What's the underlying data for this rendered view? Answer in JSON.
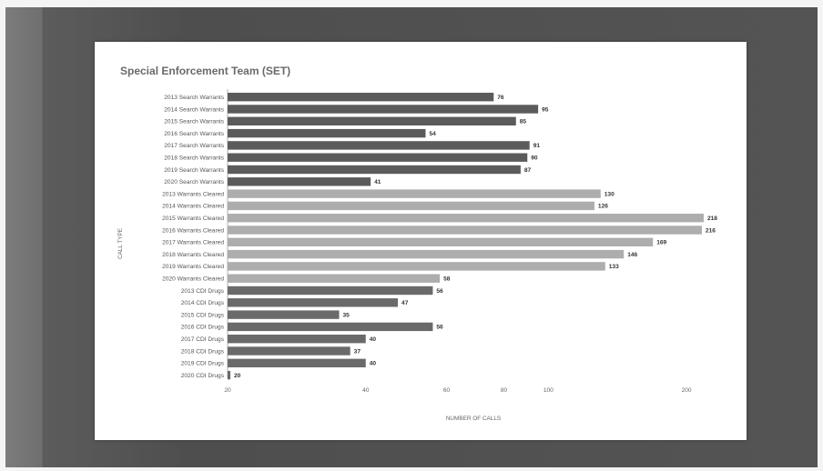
{
  "chart_data": {
    "type": "bar",
    "orientation": "horizontal",
    "title": "Special Enforcement Team (SET)",
    "xlabel": "NUMBER OF CALLS",
    "ylabel": "CALL TYPE",
    "x_scale": "log",
    "xlim": [
      20,
      240
    ],
    "x_ticks": [
      "20",
      "40",
      "60",
      "80",
      "100",
      "200"
    ],
    "x_tick_values": [
      20,
      40,
      60,
      80,
      100,
      200
    ],
    "grid": false,
    "legend": "none",
    "categories": [
      "2013 Search Warrants",
      "2014 Search Warrants",
      "2015 Search Warrants",
      "2016 Search Warrants",
      "2017 Search Warrants",
      "2018 Search Warrants",
      "2019 Search Warrants",
      "2020 Search Warrants",
      "2013 Warrants Cleared",
      "2014 Warrants Cleared",
      "2015 Warrants Cleared",
      "2016 Warrants Cleared",
      "2017 Warrants Cleared",
      "2018 Warrants Cleared",
      "2019 Warrants Cleared",
      "2020 Warrants Cleared",
      "2013 CDI Drugs",
      "2014 CDI Drugs",
      "2015 CDI Drugs",
      "2016 CDI Drugs",
      "2017 CDI Drugs",
      "2018 CDI Drugs",
      "2019 CDI Drugs",
      "2020 CDI Drugs"
    ],
    "values": [
      76,
      95,
      85,
      54,
      91,
      90,
      87,
      41,
      130,
      126,
      218,
      216,
      169,
      146,
      133,
      58,
      56,
      47,
      35,
      56,
      40,
      37,
      40,
      20
    ],
    "value_labels": [
      "76",
      "95",
      "85",
      "54",
      "91",
      "90",
      "87",
      "41",
      "130",
      "126",
      "218",
      "216",
      "169",
      "146",
      "133",
      "58",
      "56",
      "47",
      "35",
      "56",
      "40",
      "37",
      "40",
      "20"
    ],
    "groups": [
      {
        "name": "Search Warrants",
        "color": "#5b5b5b",
        "count": 8
      },
      {
        "name": "Warrants Cleared",
        "color": "#adadad",
        "count": 8
      },
      {
        "name": "CDI Drugs",
        "color": "#6a6a6a",
        "count": 8
      }
    ]
  }
}
